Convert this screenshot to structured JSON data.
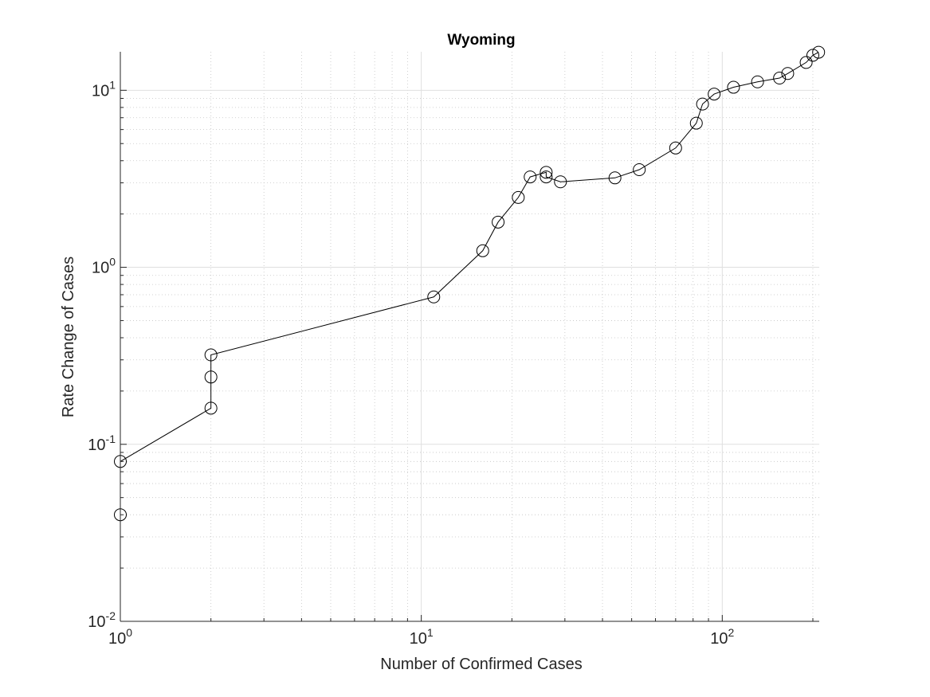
{
  "chart_data": {
    "type": "line",
    "title": "Wyoming",
    "xlabel": "Number of Confirmed Cases",
    "ylabel": "Rate Change of Cases",
    "xscale": "log",
    "yscale": "log",
    "xlim": [
      1,
      210
    ],
    "ylim": [
      0.01,
      16.5
    ],
    "grid": true,
    "minor_grid": true,
    "marker": "open-circle",
    "line_color": "#000000",
    "x_ticks": [
      {
        "base": "10",
        "exp": "0"
      },
      {
        "base": "10",
        "exp": "1"
      },
      {
        "base": "10",
        "exp": "2"
      }
    ],
    "y_ticks": [
      {
        "base": "10",
        "exp": "-2"
      },
      {
        "base": "10",
        "exp": "-1"
      },
      {
        "base": "10",
        "exp": "0"
      },
      {
        "base": "10",
        "exp": "1"
      }
    ],
    "series": [
      {
        "x": [
          1,
          1,
          2,
          2,
          2,
          11,
          16,
          18,
          21,
          23,
          26,
          26,
          29,
          44,
          53,
          70,
          82,
          86,
          94,
          109,
          131,
          155,
          165,
          190,
          200,
          209
        ],
        "y": [
          0.04,
          0.08,
          0.16,
          0.24,
          0.32,
          0.68,
          1.24,
          1.8,
          2.48,
          3.24,
          3.44,
          3.24,
          3.04,
          3.2,
          3.56,
          4.72,
          6.52,
          8.36,
          9.52,
          10.4,
          11.16,
          11.72,
          12.44,
          14.36,
          15.76,
          16.4
        ]
      }
    ]
  }
}
